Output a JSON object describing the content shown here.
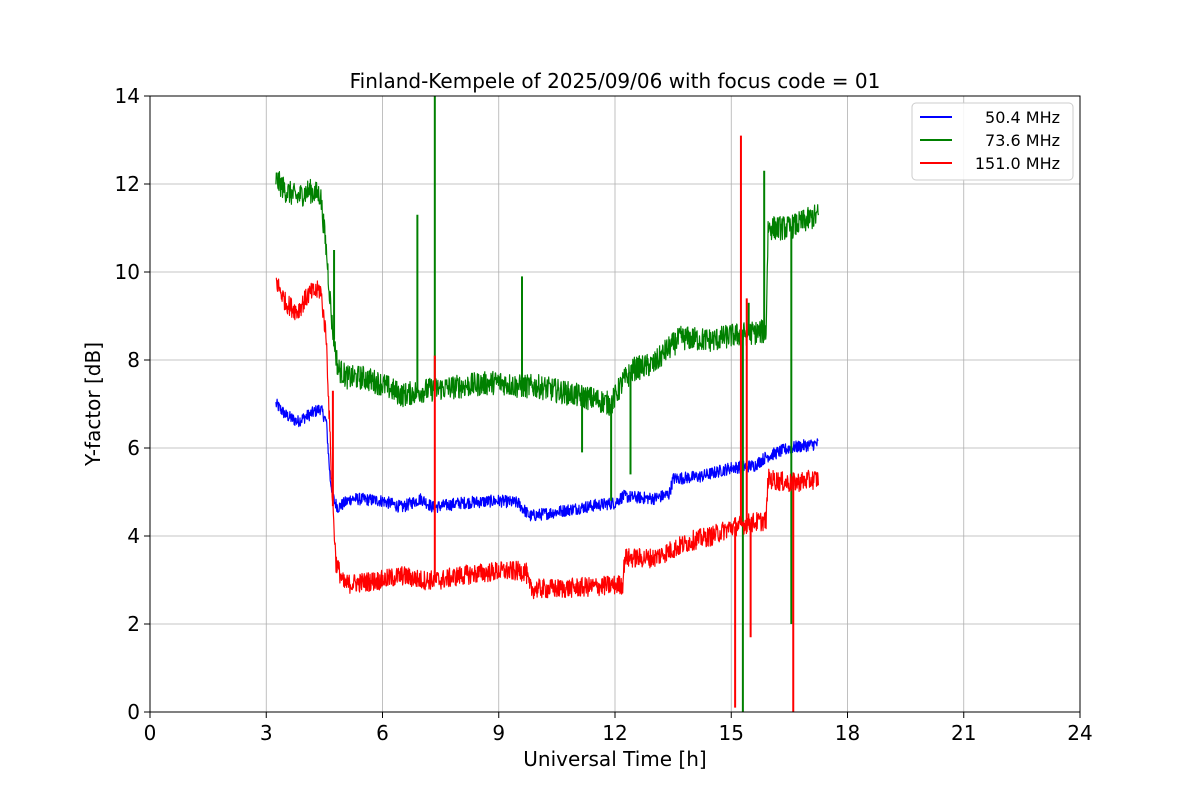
{
  "chart_data": {
    "type": "line",
    "title": "Finland-Kempele of 2025/09/06 with focus code = 01",
    "xlabel": "Universal Time [h]",
    "ylabel": "Y-factor [dB]",
    "xlim": [
      0,
      24
    ],
    "ylim": [
      0,
      14
    ],
    "xticks": [
      0,
      3,
      6,
      9,
      12,
      15,
      18,
      21,
      24
    ],
    "yticks": [
      0,
      2,
      4,
      6,
      8,
      10,
      12,
      14
    ],
    "grid": true,
    "legend_position": "top-right",
    "series": [
      {
        "name": "50.4 MHz",
        "color": "#0000ff",
        "noise": 0.28,
        "points": [
          [
            3.25,
            7.0
          ],
          [
            3.5,
            6.75
          ],
          [
            3.8,
            6.6
          ],
          [
            4.1,
            6.75
          ],
          [
            4.4,
            6.9
          ],
          [
            4.55,
            6.6
          ],
          [
            4.65,
            5.3
          ],
          [
            4.75,
            4.8
          ],
          [
            4.85,
            4.65
          ],
          [
            5.2,
            4.85
          ],
          [
            6.0,
            4.8
          ],
          [
            6.5,
            4.65
          ],
          [
            7.0,
            4.85
          ],
          [
            7.3,
            4.65
          ],
          [
            8.0,
            4.75
          ],
          [
            9.0,
            4.8
          ],
          [
            9.5,
            4.75
          ],
          [
            9.8,
            4.45
          ],
          [
            10.5,
            4.55
          ],
          [
            11.5,
            4.7
          ],
          [
            12.0,
            4.75
          ],
          [
            12.2,
            4.9
          ],
          [
            13.0,
            4.85
          ],
          [
            13.4,
            4.95
          ],
          [
            13.5,
            5.3
          ],
          [
            14.2,
            5.35
          ],
          [
            15.0,
            5.55
          ],
          [
            15.6,
            5.6
          ],
          [
            15.9,
            5.8
          ],
          [
            16.5,
            6.0
          ],
          [
            17.25,
            6.1
          ]
        ],
        "spikes": []
      },
      {
        "name": "73.6 MHz",
        "color": "#008000",
        "noise": 0.55,
        "points": [
          [
            3.25,
            12.1
          ],
          [
            3.5,
            11.85
          ],
          [
            3.8,
            11.7
          ],
          [
            4.1,
            11.85
          ],
          [
            4.4,
            11.75
          ],
          [
            4.55,
            10.5
          ],
          [
            4.7,
            8.8
          ],
          [
            4.85,
            7.8
          ],
          [
            5.1,
            7.6
          ],
          [
            5.5,
            7.6
          ],
          [
            6.0,
            7.45
          ],
          [
            6.5,
            7.2
          ],
          [
            7.0,
            7.3
          ],
          [
            7.5,
            7.35
          ],
          [
            8.0,
            7.4
          ],
          [
            9.0,
            7.5
          ],
          [
            9.5,
            7.4
          ],
          [
            10.0,
            7.4
          ],
          [
            10.5,
            7.3
          ],
          [
            11.0,
            7.2
          ],
          [
            11.5,
            7.1
          ],
          [
            11.9,
            7.0
          ],
          [
            12.2,
            7.5
          ],
          [
            12.5,
            7.8
          ],
          [
            13.0,
            7.9
          ],
          [
            13.3,
            8.2
          ],
          [
            13.7,
            8.5
          ],
          [
            14.5,
            8.45
          ],
          [
            15.0,
            8.55
          ],
          [
            15.4,
            8.6
          ],
          [
            15.9,
            8.65
          ],
          [
            15.95,
            11.0
          ],
          [
            16.5,
            11.0
          ],
          [
            17.25,
            11.3
          ]
        ],
        "spikes": [
          [
            4.75,
            10.5
          ],
          [
            6.9,
            11.3
          ],
          [
            7.35,
            14.0
          ],
          [
            9.6,
            9.9
          ],
          [
            11.15,
            5.9
          ],
          [
            11.9,
            4.8
          ],
          [
            12.4,
            5.4
          ],
          [
            15.3,
            0.0
          ],
          [
            15.45,
            9.3
          ],
          [
            15.85,
            12.3
          ],
          [
            16.55,
            2.0
          ]
        ]
      },
      {
        "name": "151.0 MHz",
        "color": "#ff0000",
        "noise": 0.45,
        "points": [
          [
            3.25,
            9.8
          ],
          [
            3.5,
            9.3
          ],
          [
            3.8,
            9.1
          ],
          [
            4.1,
            9.5
          ],
          [
            4.4,
            9.6
          ],
          [
            4.55,
            8.5
          ],
          [
            4.7,
            5.0
          ],
          [
            4.8,
            3.4
          ],
          [
            5.0,
            2.9
          ],
          [
            6.0,
            3.0
          ],
          [
            6.5,
            3.1
          ],
          [
            7.0,
            3.0
          ],
          [
            7.5,
            3.0
          ],
          [
            8.0,
            3.1
          ],
          [
            9.0,
            3.2
          ],
          [
            9.7,
            3.2
          ],
          [
            9.8,
            2.8
          ],
          [
            10.5,
            2.8
          ],
          [
            11.5,
            2.85
          ],
          [
            12.2,
            2.9
          ],
          [
            12.25,
            3.5
          ],
          [
            13.0,
            3.5
          ],
          [
            13.5,
            3.7
          ],
          [
            14.0,
            3.9
          ],
          [
            14.5,
            4.0
          ],
          [
            15.0,
            4.2
          ],
          [
            15.5,
            4.3
          ],
          [
            15.9,
            4.35
          ],
          [
            15.95,
            5.3
          ],
          [
            16.5,
            5.2
          ],
          [
            17.25,
            5.3
          ]
        ],
        "spikes": [
          [
            4.72,
            7.3
          ],
          [
            7.35,
            8.1
          ],
          [
            15.1,
            0.1
          ],
          [
            15.25,
            13.1
          ],
          [
            15.4,
            9.4
          ],
          [
            15.5,
            1.7
          ],
          [
            16.6,
            0.0
          ]
        ]
      }
    ]
  }
}
